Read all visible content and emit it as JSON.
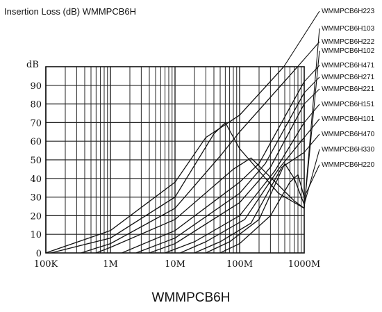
{
  "header": {
    "title": "Insertion Loss (dB) WMMPCB6H"
  },
  "footer": {
    "caption": "WMMPCB6H"
  },
  "chart_data": {
    "type": "line",
    "title": "Insertion Loss (dB) WMMPCB6H",
    "ylabel": "dB",
    "xlabel": "",
    "x_scale": "log",
    "xlim": [
      100000,
      1000000000
    ],
    "ylim": [
      0,
      100
    ],
    "grid": true,
    "x_tick_values": [
      100000,
      1000000,
      10000000,
      100000000,
      1000000000
    ],
    "x_tick_labels": [
      "100K",
      "1M",
      "10M",
      "100M",
      "1000M"
    ],
    "y_tick_values": [
      0,
      10,
      20,
      30,
      40,
      50,
      60,
      70,
      80,
      90
    ],
    "y_tick_labels": [
      "0",
      "10",
      "20",
      "30",
      "40",
      "50",
      "60",
      "70",
      "80",
      "90"
    ],
    "legend_position": "right",
    "series": [
      {
        "name": "WMMPCB6H223",
        "x": [
          100000,
          1000000,
          10000000,
          30000000,
          100000000,
          1000000000
        ],
        "y": [
          0,
          12,
          38,
          62,
          74,
          112
        ]
      },
      {
        "name": "WMMPCB6H103",
        "x": [
          120000,
          1000000,
          10000000,
          40000000,
          60000000,
          100000000,
          400000000,
          1000000000
        ],
        "y": [
          0,
          8,
          30,
          64,
          70,
          56,
          32,
          24
        ]
      },
      {
        "name": "WMMPCB6H222",
        "x": [
          350000,
          1000000,
          10000000,
          50000000,
          100000000,
          1000000000
        ],
        "y": [
          0,
          5,
          24,
          52,
          65,
          104
        ]
      },
      {
        "name": "WMMPCB6H102",
        "x": [
          600000,
          1000000,
          10000000,
          80000000,
          150000000,
          700000000,
          1000000000
        ],
        "y": [
          0,
          3,
          18,
          45,
          51,
          28,
          24
        ]
      },
      {
        "name": "WMMPCB6H471",
        "x": [
          1500000,
          10000000,
          100000000,
          200000000,
          1000000000
        ],
        "y": [
          0,
          12,
          38,
          48,
          92
        ]
      },
      {
        "name": "WMMPCB6H271",
        "x": [
          2500000,
          10000000,
          100000000,
          250000000,
          1000000000
        ],
        "y": [
          0,
          8,
          32,
          48,
          86
        ]
      },
      {
        "name": "WMMPCB6H221",
        "x": [
          4000000,
          10000000,
          100000000,
          300000000,
          1000000000
        ],
        "y": [
          0,
          5,
          27,
          46,
          80
        ]
      },
      {
        "name": "WMMPCB6H151",
        "x": [
          7000000,
          20000000,
          100000000,
          350000000,
          1000000000
        ],
        "y": [
          0,
          6,
          20,
          44,
          70
        ]
      },
      {
        "name": "WMMPCB6H101",
        "x": [
          12000000,
          30000000,
          120000000,
          400000000,
          1000000000
        ],
        "y": [
          0,
          6,
          18,
          45,
          62
        ]
      },
      {
        "name": "WMMPCB6H470",
        "x": [
          20000000,
          50000000,
          150000000,
          450000000,
          1000000000
        ],
        "y": [
          0,
          6,
          16,
          46,
          54
        ]
      },
      {
        "name": "WMMPCB6H330",
        "x": [
          30000000,
          70000000,
          200000000,
          500000000,
          700000000,
          1000000000
        ],
        "y": [
          0,
          6,
          18,
          48,
          40,
          26
        ]
      },
      {
        "name": "WMMPCB6H220",
        "x": [
          50000000,
          100000000,
          300000000,
          600000000,
          800000000,
          1000000000
        ],
        "y": [
          0,
          5,
          20,
          38,
          42,
          30
        ]
      }
    ]
  }
}
